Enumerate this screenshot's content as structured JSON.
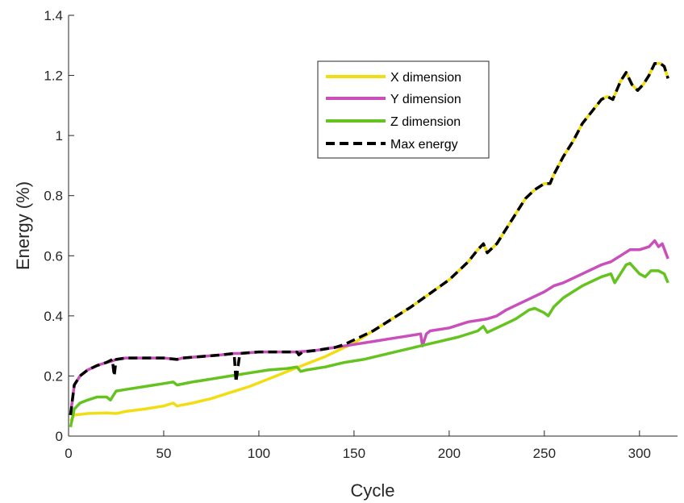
{
  "chart_data": {
    "type": "line",
    "title": "",
    "xlabel": "Cycle",
    "ylabel": "Energy (%)",
    "xlim": [
      0,
      320
    ],
    "ylim": [
      0,
      1.4
    ],
    "xticks": [
      0,
      50,
      100,
      150,
      200,
      250,
      300
    ],
    "yticks": [
      0,
      0.2,
      0.4,
      0.6,
      0.8,
      1,
      1.2,
      1.4
    ],
    "xtick_labels": [
      "0",
      "50",
      "100",
      "150",
      "200",
      "250",
      "300"
    ],
    "ytick_labels": [
      "0",
      "0.2",
      "0.4",
      "0.6",
      "0.8",
      "1",
      "1.2",
      "1.4"
    ],
    "grid": false,
    "legend_position": "top-right",
    "series": [
      {
        "name": "X dimension",
        "color": "#f2dd12",
        "style": "solid",
        "points": [
          [
            1,
            0.05
          ],
          [
            3,
            0.07
          ],
          [
            10,
            0.075
          ],
          [
            20,
            0.077
          ],
          [
            25,
            0.075
          ],
          [
            30,
            0.082
          ],
          [
            40,
            0.09
          ],
          [
            50,
            0.1
          ],
          [
            55,
            0.11
          ],
          [
            57,
            0.1
          ],
          [
            65,
            0.11
          ],
          [
            75,
            0.125
          ],
          [
            85,
            0.145
          ],
          [
            95,
            0.165
          ],
          [
            105,
            0.19
          ],
          [
            115,
            0.215
          ],
          [
            125,
            0.24
          ],
          [
            135,
            0.265
          ],
          [
            145,
            0.295
          ],
          [
            150,
            0.31
          ],
          [
            160,
            0.35
          ],
          [
            170,
            0.39
          ],
          [
            180,
            0.43
          ],
          [
            190,
            0.475
          ],
          [
            200,
            0.52
          ],
          [
            210,
            0.58
          ],
          [
            215,
            0.62
          ],
          [
            218,
            0.64
          ],
          [
            220,
            0.61
          ],
          [
            225,
            0.64
          ],
          [
            230,
            0.69
          ],
          [
            235,
            0.74
          ],
          [
            240,
            0.79
          ],
          [
            245,
            0.82
          ],
          [
            250,
            0.84
          ],
          [
            253,
            0.84
          ],
          [
            255,
            0.87
          ],
          [
            260,
            0.93
          ],
          [
            265,
            0.98
          ],
          [
            270,
            1.04
          ],
          [
            275,
            1.08
          ],
          [
            280,
            1.12
          ],
          [
            283,
            1.13
          ],
          [
            286,
            1.12
          ],
          [
            290,
            1.18
          ],
          [
            293,
            1.21
          ],
          [
            296,
            1.17
          ],
          [
            299,
            1.15
          ],
          [
            302,
            1.17
          ],
          [
            305,
            1.2
          ],
          [
            308,
            1.24
          ],
          [
            311,
            1.24
          ],
          [
            313,
            1.23
          ],
          [
            315,
            1.19
          ]
        ]
      },
      {
        "name": "Y dimension",
        "color": "#c94fbb",
        "style": "solid",
        "points": [
          [
            1,
            0.07
          ],
          [
            3,
            0.17
          ],
          [
            6,
            0.2
          ],
          [
            10,
            0.22
          ],
          [
            15,
            0.235
          ],
          [
            20,
            0.245
          ],
          [
            23,
            0.25
          ],
          [
            25,
            0.255
          ],
          [
            30,
            0.26
          ],
          [
            50,
            0.26
          ],
          [
            57,
            0.255
          ],
          [
            60,
            0.26
          ],
          [
            80,
            0.27
          ],
          [
            87,
            0.275
          ],
          [
            90,
            0.275
          ],
          [
            100,
            0.28
          ],
          [
            120,
            0.28
          ],
          [
            130,
            0.285
          ],
          [
            140,
            0.295
          ],
          [
            150,
            0.305
          ],
          [
            160,
            0.315
          ],
          [
            170,
            0.325
          ],
          [
            180,
            0.335
          ],
          [
            185,
            0.34
          ],
          [
            186,
            0.3
          ],
          [
            188,
            0.34
          ],
          [
            190,
            0.35
          ],
          [
            200,
            0.36
          ],
          [
            210,
            0.38
          ],
          [
            220,
            0.39
          ],
          [
            225,
            0.4
          ],
          [
            230,
            0.42
          ],
          [
            240,
            0.45
          ],
          [
            250,
            0.48
          ],
          [
            255,
            0.5
          ],
          [
            260,
            0.51
          ],
          [
            270,
            0.54
          ],
          [
            280,
            0.57
          ],
          [
            285,
            0.58
          ],
          [
            290,
            0.6
          ],
          [
            295,
            0.62
          ],
          [
            300,
            0.62
          ],
          [
            305,
            0.63
          ],
          [
            308,
            0.65
          ],
          [
            310,
            0.63
          ],
          [
            312,
            0.64
          ],
          [
            315,
            0.59
          ]
        ]
      },
      {
        "name": "Z dimension",
        "color": "#64c31e",
        "style": "solid",
        "points": [
          [
            1,
            0.03
          ],
          [
            3,
            0.09
          ],
          [
            6,
            0.11
          ],
          [
            10,
            0.12
          ],
          [
            15,
            0.13
          ],
          [
            20,
            0.13
          ],
          [
            22,
            0.12
          ],
          [
            25,
            0.15
          ],
          [
            30,
            0.155
          ],
          [
            40,
            0.165
          ],
          [
            50,
            0.175
          ],
          [
            55,
            0.18
          ],
          [
            57,
            0.17
          ],
          [
            65,
            0.18
          ],
          [
            75,
            0.19
          ],
          [
            85,
            0.2
          ],
          [
            95,
            0.21
          ],
          [
            105,
            0.22
          ],
          [
            115,
            0.225
          ],
          [
            120,
            0.23
          ],
          [
            122,
            0.215
          ],
          [
            125,
            0.22
          ],
          [
            135,
            0.23
          ],
          [
            145,
            0.245
          ],
          [
            155,
            0.255
          ],
          [
            165,
            0.27
          ],
          [
            175,
            0.285
          ],
          [
            185,
            0.3
          ],
          [
            195,
            0.315
          ],
          [
            205,
            0.33
          ],
          [
            215,
            0.35
          ],
          [
            218,
            0.365
          ],
          [
            220,
            0.345
          ],
          [
            225,
            0.36
          ],
          [
            235,
            0.39
          ],
          [
            242,
            0.42
          ],
          [
            245,
            0.425
          ],
          [
            250,
            0.41
          ],
          [
            252,
            0.4
          ],
          [
            255,
            0.43
          ],
          [
            260,
            0.46
          ],
          [
            265,
            0.48
          ],
          [
            270,
            0.5
          ],
          [
            280,
            0.53
          ],
          [
            285,
            0.54
          ],
          [
            287,
            0.51
          ],
          [
            290,
            0.54
          ],
          [
            293,
            0.57
          ],
          [
            295,
            0.575
          ],
          [
            300,
            0.54
          ],
          [
            303,
            0.53
          ],
          [
            306,
            0.55
          ],
          [
            310,
            0.55
          ],
          [
            313,
            0.54
          ],
          [
            315,
            0.51
          ]
        ]
      },
      {
        "name": "Max energy",
        "color": "#000000",
        "style": "dashed",
        "points": [
          [
            1,
            0.07
          ],
          [
            3,
            0.17
          ],
          [
            6,
            0.2
          ],
          [
            10,
            0.22
          ],
          [
            15,
            0.235
          ],
          [
            20,
            0.245
          ],
          [
            23,
            0.255
          ],
          [
            24,
            0.2
          ],
          [
            25,
            0.255
          ],
          [
            30,
            0.26
          ],
          [
            50,
            0.26
          ],
          [
            57,
            0.255
          ],
          [
            60,
            0.26
          ],
          [
            80,
            0.27
          ],
          [
            87,
            0.275
          ],
          [
            88,
            0.18
          ],
          [
            90,
            0.275
          ],
          [
            100,
            0.28
          ],
          [
            120,
            0.28
          ],
          [
            121,
            0.27
          ],
          [
            123,
            0.28
          ],
          [
            130,
            0.285
          ],
          [
            140,
            0.295
          ],
          [
            145,
            0.305
          ],
          [
            150,
            0.32
          ],
          [
            160,
            0.35
          ],
          [
            170,
            0.39
          ],
          [
            180,
            0.43
          ],
          [
            190,
            0.475
          ],
          [
            200,
            0.52
          ],
          [
            210,
            0.58
          ],
          [
            215,
            0.62
          ],
          [
            218,
            0.64
          ],
          [
            220,
            0.61
          ],
          [
            225,
            0.64
          ],
          [
            230,
            0.69
          ],
          [
            235,
            0.74
          ],
          [
            240,
            0.79
          ],
          [
            245,
            0.82
          ],
          [
            250,
            0.84
          ],
          [
            253,
            0.84
          ],
          [
            255,
            0.87
          ],
          [
            260,
            0.93
          ],
          [
            265,
            0.98
          ],
          [
            270,
            1.04
          ],
          [
            275,
            1.08
          ],
          [
            280,
            1.12
          ],
          [
            283,
            1.13
          ],
          [
            286,
            1.12
          ],
          [
            290,
            1.18
          ],
          [
            293,
            1.21
          ],
          [
            296,
            1.17
          ],
          [
            299,
            1.15
          ],
          [
            302,
            1.17
          ],
          [
            305,
            1.2
          ],
          [
            308,
            1.24
          ],
          [
            311,
            1.24
          ],
          [
            313,
            1.23
          ],
          [
            315,
            1.19
          ]
        ]
      }
    ]
  }
}
